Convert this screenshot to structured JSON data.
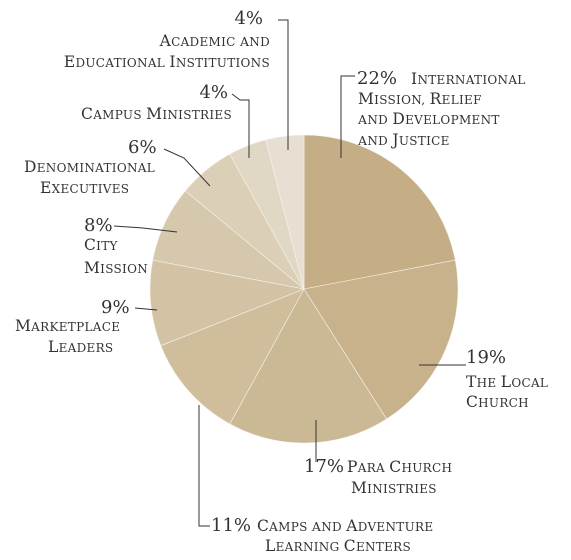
{
  "chart_data": {
    "type": "pie",
    "slices": [
      {
        "value": 22,
        "pct": "22%",
        "lines": [
          "International",
          "Mission, Relief",
          "and Development",
          "and Justice"
        ],
        "color": "#c5ae86"
      },
      {
        "value": 19,
        "pct": "19%",
        "lines": [
          "The Local",
          "Church"
        ],
        "color": "#c8b28b"
      },
      {
        "value": 17,
        "pct": "17%",
        "lines": [
          "Para Church",
          "Ministries"
        ],
        "color": "#cbb894"
      },
      {
        "value": 11,
        "pct": "11%",
        "lines": [
          "Camps and Adventure",
          "Learning Centers"
        ],
        "color": "#cfbd9b"
      },
      {
        "value": 9,
        "pct": "9%",
        "lines": [
          "Marketplace",
          "Leaders"
        ],
        "color": "#d3c3a4"
      },
      {
        "value": 8,
        "pct": "8%",
        "lines": [
          "City",
          "Mission"
        ],
        "color": "#d6c8ad"
      },
      {
        "value": 6,
        "pct": "6%",
        "lines": [
          "Denominational",
          "Executives"
        ],
        "color": "#dbcfb8"
      },
      {
        "value": 4,
        "pct": "4%",
        "lines": [
          "Campus Ministries"
        ],
        "color": "#e0d7c5"
      },
      {
        "value": 4,
        "pct": "4%",
        "lines": [
          "Academic and",
          "Educational Institutions"
        ],
        "color": "#e6dfd2"
      }
    ]
  }
}
